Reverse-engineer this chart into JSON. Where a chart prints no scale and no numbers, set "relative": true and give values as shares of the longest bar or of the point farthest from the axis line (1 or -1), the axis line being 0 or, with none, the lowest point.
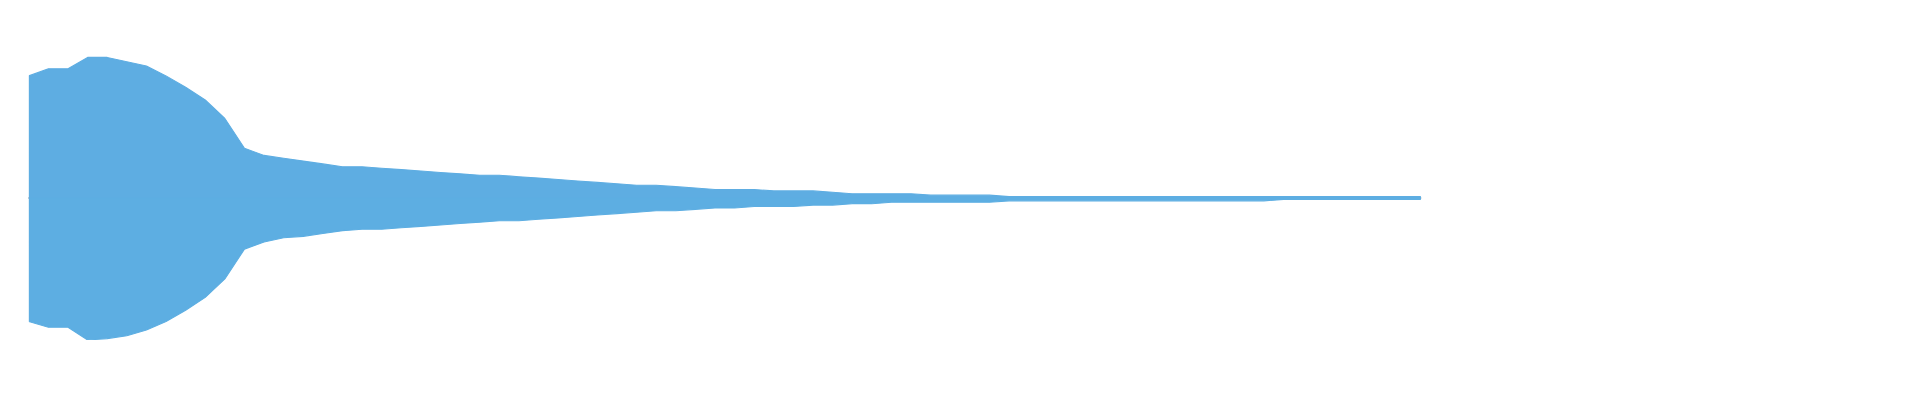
{
  "chart_data": {
    "type": "area",
    "relative": true,
    "categories": [
      null,
      null,
      null,
      null,
      null,
      null,
      null,
      null,
      null,
      null,
      null,
      null,
      null,
      null,
      null,
      null,
      null,
      null,
      null,
      null,
      null,
      null,
      null,
      null,
      null,
      null,
      null,
      null,
      null,
      null,
      null,
      null,
      null,
      null,
      null,
      null,
      null,
      null,
      null,
      null,
      null,
      null,
      null,
      null,
      null,
      null,
      null,
      null,
      null,
      null,
      null,
      null,
      null,
      null,
      null,
      null,
      null,
      null,
      null,
      null,
      null,
      null,
      null,
      null,
      null,
      null,
      null,
      null,
      null,
      null,
      null,
      null
    ],
    "series": [
      {
        "color": "#5eade2",
        "values": [
          0.86,
          0.91,
          0.91,
          0.99,
          0.99,
          0.96,
          0.93,
          0.86,
          0.78,
          0.69,
          0.56,
          0.35,
          0.3,
          0.28,
          0.26,
          0.24,
          0.22,
          0.22,
          0.21,
          0.2,
          0.19,
          0.18,
          0.17,
          0.16,
          0.16,
          0.15,
          0.14,
          0.13,
          0.12,
          0.11,
          0.1,
          0.09,
          0.09,
          0.08,
          0.07,
          0.06,
          0.06,
          0.06,
          0.05,
          0.05,
          0.05,
          0.04,
          0.03,
          0.03,
          0.03,
          0.03,
          0.02,
          0.02,
          0.02,
          0.02,
          0.01,
          0.01,
          0.01,
          0.01,
          0.01,
          0.01,
          0.01,
          0.01,
          0.01,
          0.01,
          0.01,
          0.01,
          0.01,
          0.01,
          0.01,
          0.01,
          0.01,
          0.01,
          0.01,
          0.01,
          0.01,
          0.01
        ]
      },
      {
        "color": "#5daee2",
        "values": [
          -0.87,
          -0.91,
          -0.91,
          -1.0,
          -0.99,
          -0.97,
          -0.93,
          -0.87,
          -0.79,
          -0.7,
          -0.57,
          -0.36,
          -0.31,
          -0.28,
          -0.27,
          -0.25,
          -0.23,
          -0.22,
          -0.22,
          -0.21,
          -0.2,
          -0.19,
          -0.18,
          -0.17,
          -0.16,
          -0.16,
          -0.15,
          -0.14,
          -0.13,
          -0.12,
          -0.11,
          -0.1,
          -0.09,
          -0.09,
          -0.08,
          -0.07,
          -0.07,
          -0.06,
          -0.06,
          -0.06,
          -0.05,
          -0.05,
          -0.04,
          -0.04,
          -0.03,
          -0.03,
          -0.03,
          -0.03,
          -0.03,
          -0.03,
          -0.02,
          -0.02,
          -0.02,
          -0.02,
          -0.02,
          -0.02,
          -0.02,
          -0.02,
          -0.02,
          -0.02,
          -0.02,
          -0.02,
          -0.02,
          -0.02,
          -0.01,
          -0.01,
          -0.01,
          -0.01,
          -0.01,
          -0.01,
          -0.01,
          -0.01
        ]
      }
    ]
  }
}
